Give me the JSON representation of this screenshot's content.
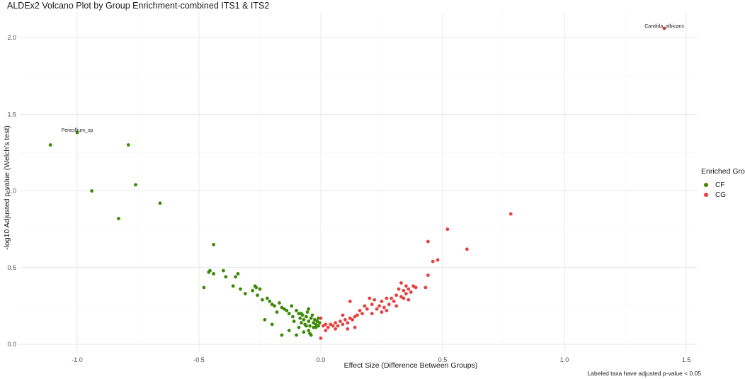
{
  "chart_data": {
    "type": "scatter",
    "title": "ALDEx2 Volcano Plot by Group Enrichment-combined ITS1 & ITS2",
    "xlabel": "Effect Size (Difference Between Groups)",
    "ylabel": "-log10 Adjusted p-value (Welch's test)",
    "xlim": [
      -1.2,
      1.55
    ],
    "ylim": [
      -0.05,
      2.15
    ],
    "xticks": [
      -1.0,
      -0.5,
      0.0,
      0.5,
      1.0,
      1.5
    ],
    "xtick_labels": [
      "-1.0",
      "-0.5",
      "0.0",
      "0.5",
      "1.0",
      "1.5"
    ],
    "yticks": [
      0.0,
      0.5,
      1.0,
      1.5,
      2.0
    ],
    "ytick_labels": [
      "0.0",
      "0.5",
      "1.0",
      "1.5",
      "2.0"
    ],
    "grid": true,
    "legend": {
      "title": "Enriched Group",
      "position": "right",
      "entries": [
        {
          "label": "CF",
          "color": "#3c8a05"
        },
        {
          "label": "CG",
          "color": "#e8403f"
        }
      ]
    },
    "annotations": [
      {
        "text": "Penicillium_sp",
        "x": -1.0,
        "y": 1.38
      },
      {
        "text": "Candida_albicans",
        "x": 1.41,
        "y": 2.06
      }
    ],
    "caption": "Labeled taxa have adjusted p-value < 0.05",
    "series": [
      {
        "name": "CF",
        "color": "#3c8a05",
        "points": [
          [
            -1.11,
            1.3
          ],
          [
            -1.0,
            1.38
          ],
          [
            -0.94,
            1.0
          ],
          [
            -0.83,
            0.82
          ],
          [
            -0.79,
            1.3
          ],
          [
            -0.76,
            1.04
          ],
          [
            -0.66,
            0.92
          ],
          [
            -0.44,
            0.65
          ],
          [
            -0.48,
            0.37
          ],
          [
            -0.46,
            0.47
          ],
          [
            -0.455,
            0.48
          ],
          [
            -0.44,
            0.46
          ],
          [
            -0.4,
            0.48
          ],
          [
            -0.39,
            0.44
          ],
          [
            -0.35,
            0.44
          ],
          [
            -0.34,
            0.46
          ],
          [
            -0.36,
            0.38
          ],
          [
            -0.33,
            0.36
          ],
          [
            -0.31,
            0.33
          ],
          [
            -0.28,
            0.35
          ],
          [
            -0.27,
            0.38
          ],
          [
            -0.265,
            0.37
          ],
          [
            -0.26,
            0.32
          ],
          [
            -0.25,
            0.36
          ],
          [
            -0.24,
            0.29
          ],
          [
            -0.22,
            0.3
          ],
          [
            -0.21,
            0.28
          ],
          [
            -0.2,
            0.26
          ],
          [
            -0.19,
            0.25
          ],
          [
            -0.18,
            0.21
          ],
          [
            -0.17,
            0.27
          ],
          [
            -0.16,
            0.24
          ],
          [
            -0.15,
            0.23
          ],
          [
            -0.14,
            0.22
          ],
          [
            -0.13,
            0.2
          ],
          [
            -0.12,
            0.25
          ],
          [
            -0.115,
            0.18
          ],
          [
            -0.11,
            0.15
          ],
          [
            -0.1,
            0.22
          ],
          [
            -0.09,
            0.2
          ],
          [
            -0.085,
            0.17
          ],
          [
            -0.08,
            0.14
          ],
          [
            -0.075,
            0.19
          ],
          [
            -0.07,
            0.16
          ],
          [
            -0.065,
            0.13
          ],
          [
            -0.06,
            0.18
          ],
          [
            -0.055,
            0.21
          ],
          [
            -0.05,
            0.15
          ],
          [
            -0.045,
            0.12
          ],
          [
            -0.04,
            0.17
          ],
          [
            -0.035,
            0.19
          ],
          [
            -0.03,
            0.14
          ],
          [
            -0.025,
            0.16
          ],
          [
            -0.02,
            0.13
          ],
          [
            -0.015,
            0.15
          ],
          [
            -0.01,
            0.17
          ],
          [
            -0.005,
            0.14
          ],
          [
            -0.03,
            0.11
          ],
          [
            -0.05,
            0.09
          ],
          [
            -0.07,
            0.08
          ],
          [
            -0.09,
            0.11
          ],
          [
            -0.13,
            0.09
          ],
          [
            -0.16,
            0.06
          ],
          [
            -0.23,
            0.16
          ],
          [
            -0.2,
            0.13
          ],
          [
            -0.1,
            0.06
          ],
          [
            -0.04,
            0.06
          ],
          [
            -0.02,
            0.11
          ],
          [
            -0.06,
            0.12
          ],
          [
            -0.01,
            0.12
          ],
          [
            -0.045,
            0.07
          ],
          [
            -0.08,
            0.2
          ],
          [
            -0.05,
            0.23
          ]
        ]
      },
      {
        "name": "CG",
        "color": "#e8403f",
        "points": [
          [
            1.41,
            2.06
          ],
          [
            0.78,
            0.85
          ],
          [
            0.52,
            0.75
          ],
          [
            0.44,
            0.67
          ],
          [
            0.6,
            0.62
          ],
          [
            0.48,
            0.55
          ],
          [
            0.46,
            0.54
          ],
          [
            0.44,
            0.45
          ],
          [
            0.43,
            0.37
          ],
          [
            0.38,
            0.38
          ],
          [
            0.37,
            0.34
          ],
          [
            0.36,
            0.36
          ],
          [
            0.35,
            0.33
          ],
          [
            0.34,
            0.35
          ],
          [
            0.33,
            0.31
          ],
          [
            0.32,
            0.36
          ],
          [
            0.31,
            0.32
          ],
          [
            0.3,
            0.28
          ],
          [
            0.29,
            0.3
          ],
          [
            0.28,
            0.26
          ],
          [
            0.27,
            0.3
          ],
          [
            0.26,
            0.24
          ],
          [
            0.25,
            0.28
          ],
          [
            0.24,
            0.25
          ],
          [
            0.23,
            0.23
          ],
          [
            0.22,
            0.29
          ],
          [
            0.21,
            0.26
          ],
          [
            0.2,
            0.3
          ],
          [
            0.18,
            0.25
          ],
          [
            0.17,
            0.2
          ],
          [
            0.16,
            0.22
          ],
          [
            0.15,
            0.19
          ],
          [
            0.14,
            0.18
          ],
          [
            0.13,
            0.16
          ],
          [
            0.12,
            0.17
          ],
          [
            0.11,
            0.14
          ],
          [
            0.1,
            0.16
          ],
          [
            0.09,
            0.13
          ],
          [
            0.08,
            0.15
          ],
          [
            0.07,
            0.12
          ],
          [
            0.06,
            0.14
          ],
          [
            0.05,
            0.12
          ],
          [
            0.04,
            0.13
          ],
          [
            0.03,
            0.11
          ],
          [
            0.02,
            0.13
          ],
          [
            0.01,
            0.12
          ],
          [
            0.0,
            0.17
          ],
          [
            0.0,
            0.04
          ],
          [
            0.12,
            0.28
          ],
          [
            0.19,
            0.23
          ],
          [
            0.33,
            0.4
          ],
          [
            0.35,
            0.38
          ],
          [
            0.39,
            0.37
          ],
          [
            0.31,
            0.25
          ],
          [
            0.27,
            0.22
          ],
          [
            0.09,
            0.19
          ],
          [
            0.14,
            0.11
          ],
          [
            0.11,
            0.1
          ],
          [
            0.06,
            0.1
          ],
          [
            0.02,
            0.09
          ],
          [
            0.21,
            0.2
          ],
          [
            0.25,
            0.21
          ],
          [
            0.34,
            0.3
          ],
          [
            0.36,
            0.29
          ]
        ]
      }
    ]
  }
}
